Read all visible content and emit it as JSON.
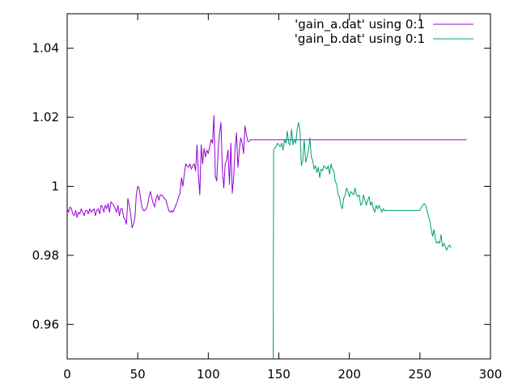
{
  "chart_data": {
    "type": "line",
    "title": "",
    "xlabel": "",
    "ylabel": "",
    "xlim": [
      0,
      300
    ],
    "ylim": [
      0.95,
      1.05
    ],
    "xticks": [
      {
        "value": 0,
        "label": "0"
      },
      {
        "value": 50,
        "label": "50"
      },
      {
        "value": 100,
        "label": "100"
      },
      {
        "value": 150,
        "label": "150"
      },
      {
        "value": 200,
        "label": "200"
      },
      {
        "value": 250,
        "label": "250"
      },
      {
        "value": 300,
        "label": "300"
      }
    ],
    "yticks": [
      {
        "value": 0.96,
        "label": "0.96"
      },
      {
        "value": 0.98,
        "label": "0.98"
      },
      {
        "value": 1.0,
        "label": "1"
      },
      {
        "value": 1.02,
        "label": "1.02"
      },
      {
        "value": 1.04,
        "label": "1.04"
      }
    ],
    "grid": false,
    "legend_position": "top-right",
    "series": [
      {
        "name": "'gain_a.dat' using 0:1",
        "color": "#9400d3",
        "points": [
          [
            0,
            0.9935
          ],
          [
            1,
            0.9925
          ],
          [
            2,
            0.994
          ],
          [
            3,
            0.9935
          ],
          [
            4,
            0.992
          ],
          [
            5,
            0.9915
          ],
          [
            6,
            0.993
          ],
          [
            7,
            0.991
          ],
          [
            8,
            0.9925
          ],
          [
            9,
            0.992
          ],
          [
            10,
            0.9935
          ],
          [
            11,
            0.9925
          ],
          [
            12,
            0.9915
          ],
          [
            13,
            0.993
          ],
          [
            14,
            0.993
          ],
          [
            15,
            0.992
          ],
          [
            16,
            0.9935
          ],
          [
            17,
            0.9925
          ],
          [
            18,
            0.993
          ],
          [
            19,
            0.9935
          ],
          [
            20,
            0.9915
          ],
          [
            21,
            0.993
          ],
          [
            22,
            0.9935
          ],
          [
            23,
            0.992
          ],
          [
            24,
            0.9945
          ],
          [
            25,
            0.994
          ],
          [
            26,
            0.9925
          ],
          [
            27,
            0.9945
          ],
          [
            28,
            0.9935
          ],
          [
            29,
            0.995
          ],
          [
            30,
            0.9925
          ],
          [
            31,
            0.9955
          ],
          [
            32,
            0.995
          ],
          [
            33,
            0.9945
          ],
          [
            34,
            0.9935
          ],
          [
            35,
            0.9925
          ],
          [
            36,
            0.9945
          ],
          [
            37,
            0.9915
          ],
          [
            38,
            0.9935
          ],
          [
            39,
            0.9935
          ],
          [
            40,
            0.991
          ],
          [
            41,
            0.9905
          ],
          [
            42,
            0.989
          ],
          [
            43,
            0.9965
          ],
          [
            44,
            0.9945
          ],
          [
            45,
            0.992
          ],
          [
            46,
            0.988
          ],
          [
            47,
            0.989
          ],
          [
            48,
            0.991
          ],
          [
            49,
            0.9975
          ],
          [
            50,
            1.0
          ],
          [
            51,
            0.9995
          ],
          [
            52,
            0.9965
          ],
          [
            53,
            0.994
          ],
          [
            54,
            0.993
          ],
          [
            55,
            0.993
          ],
          [
            56,
            0.9935
          ],
          [
            57,
            0.9945
          ],
          [
            58,
            0.997
          ],
          [
            59,
            0.9985
          ],
          [
            60,
            0.9965
          ],
          [
            61,
            0.995
          ],
          [
            62,
            0.994
          ],
          [
            63,
            0.9965
          ],
          [
            64,
            0.9975
          ],
          [
            65,
            0.996
          ],
          [
            66,
            0.9975
          ],
          [
            67,
            0.9975
          ],
          [
            68,
            0.997
          ],
          [
            69,
            0.9965
          ],
          [
            70,
            0.996
          ],
          [
            71,
            0.9945
          ],
          [
            72,
            0.993
          ],
          [
            73,
            0.9925
          ],
          [
            74,
            0.993
          ],
          [
            75,
            0.9925
          ],
          [
            76,
            0.9935
          ],
          [
            77,
            0.9945
          ],
          [
            78,
            0.9955
          ],
          [
            79,
            0.997
          ],
          [
            80,
            0.998
          ],
          [
            81,
            1.0025
          ],
          [
            82,
            1.0
          ],
          [
            83,
            1.0035
          ],
          [
            84,
            1.0065
          ],
          [
            85,
            1.006
          ],
          [
            86,
            1.0055
          ],
          [
            87,
            1.0065
          ],
          [
            88,
            1.005
          ],
          [
            89,
            1.006
          ],
          [
            90,
            1.0065
          ],
          [
            91,
            1.0045
          ],
          [
            92,
            1.012
          ],
          [
            93,
            1.0035
          ],
          [
            94,
            0.9975
          ],
          [
            95,
            1.012
          ],
          [
            96,
            1.0065
          ],
          [
            97,
            1.011
          ],
          [
            98,
            1.0085
          ],
          [
            99,
            1.0105
          ],
          [
            100,
            1.0095
          ],
          [
            101,
            1.0115
          ],
          [
            102,
            1.0135
          ],
          [
            103,
            1.0125
          ],
          [
            104,
            1.0205
          ],
          [
            105,
            1.003
          ],
          [
            106,
            1.0015
          ],
          [
            107,
            1.0105
          ],
          [
            108,
            1.0155
          ],
          [
            109,
            1.0185
          ],
          [
            110,
            1.0045
          ],
          [
            111,
            0.9995
          ],
          [
            112,
            1.0065
          ],
          [
            113,
            1.0075
          ],
          [
            114,
            1.0105
          ],
          [
            115,
            1.0005
          ],
          [
            116,
            1.0125
          ],
          [
            117,
            0.998
          ],
          [
            118,
            1.0025
          ],
          [
            119,
            1.011
          ],
          [
            120,
            1.0155
          ],
          [
            121,
            1.0055
          ],
          [
            122,
            1.0105
          ],
          [
            123,
            1.014
          ],
          [
            124,
            1.0125
          ],
          [
            125,
            1.0095
          ],
          [
            126,
            1.0175
          ],
          [
            127,
            1.015
          ],
          [
            128,
            1.013
          ],
          [
            129,
            1.013
          ],
          [
            130,
            1.0135
          ],
          [
            131,
            1.0135
          ],
          [
            140,
            1.0135
          ],
          [
            200,
            1.0135
          ],
          [
            283,
            1.0135
          ]
        ]
      },
      {
        "name": "'gain_b.dat' using 0:1",
        "color": "#009e73",
        "points": [
          [
            146,
            0.95
          ],
          [
            146.3,
            1.0105
          ],
          [
            147,
            1.011
          ],
          [
            148,
            1.0115
          ],
          [
            149,
            1.0125
          ],
          [
            150,
            1.012
          ],
          [
            151,
            1.0115
          ],
          [
            152,
            1.0125
          ],
          [
            153,
            1.0105
          ],
          [
            154,
            1.0135
          ],
          [
            155,
            1.0125
          ],
          [
            156,
            1.016
          ],
          [
            157,
            1.0125
          ],
          [
            158,
            1.012
          ],
          [
            159,
            1.0165
          ],
          [
            160,
            1.012
          ],
          [
            161,
            1.0135
          ],
          [
            162,
            1.0125
          ],
          [
            163,
            1.0165
          ],
          [
            164,
            1.0185
          ],
          [
            165,
            1.016
          ],
          [
            166,
            1.006
          ],
          [
            167,
            1.0075
          ],
          [
            168,
            1.0135
          ],
          [
            169,
            1.007
          ],
          [
            170,
            1.0085
          ],
          [
            171,
            1.0105
          ],
          [
            172,
            1.014
          ],
          [
            173,
            1.0085
          ],
          [
            174,
            1.0075
          ],
          [
            175,
            1.005
          ],
          [
            176,
            1.006
          ],
          [
            177,
            1.004
          ],
          [
            178,
            1.0055
          ],
          [
            179,
            1.0025
          ],
          [
            180,
            1.005
          ],
          [
            181,
            1.0045
          ],
          [
            182,
            1.006
          ],
          [
            183,
            1.0055
          ],
          [
            184,
            1.005
          ],
          [
            185,
            1.006
          ],
          [
            186,
            1.0035
          ],
          [
            187,
            1.0065
          ],
          [
            188,
            1.005
          ],
          [
            189,
            1.0045
          ],
          [
            190,
            1.0015
          ],
          [
            191,
            1.0005
          ],
          [
            192,
            0.9975
          ],
          [
            193,
            0.997
          ],
          [
            194,
            0.9945
          ],
          [
            195,
            0.9935
          ],
          [
            196,
            0.9965
          ],
          [
            197,
            0.9975
          ],
          [
            198,
            0.9995
          ],
          [
            199,
            0.9985
          ],
          [
            200,
            0.997
          ],
          [
            201,
            0.9985
          ],
          [
            202,
            0.998
          ],
          [
            203,
            0.9975
          ],
          [
            204,
            0.9995
          ],
          [
            205,
            0.9975
          ],
          [
            206,
            0.997
          ],
          [
            207,
            0.9975
          ],
          [
            208,
            0.9945
          ],
          [
            209,
            0.995
          ],
          [
            210,
            0.9975
          ],
          [
            211,
            0.996
          ],
          [
            212,
            0.9945
          ],
          [
            213,
            0.996
          ],
          [
            214,
            0.997
          ],
          [
            215,
            0.9945
          ],
          [
            216,
            0.9955
          ],
          [
            217,
            0.9935
          ],
          [
            218,
            0.9925
          ],
          [
            219,
            0.9945
          ],
          [
            220,
            0.9935
          ],
          [
            221,
            0.9945
          ],
          [
            222,
            0.9935
          ],
          [
            223,
            0.9925
          ],
          [
            224,
            0.9935
          ],
          [
            225,
            0.993
          ],
          [
            240,
            0.993
          ],
          [
            250,
            0.993
          ],
          [
            251,
            0.994
          ],
          [
            252,
            0.9945
          ],
          [
            253,
            0.995
          ],
          [
            254,
            0.9945
          ],
          [
            255,
            0.993
          ],
          [
            256,
            0.9915
          ],
          [
            257,
            0.99
          ],
          [
            258,
            0.9875
          ],
          [
            259,
            0.9855
          ],
          [
            260,
            0.9875
          ],
          [
            261,
            0.9845
          ],
          [
            262,
            0.9835
          ],
          [
            263,
            0.984
          ],
          [
            264,
            0.9835
          ],
          [
            265,
            0.986
          ],
          [
            266,
            0.9825
          ],
          [
            267,
            0.9835
          ],
          [
            268,
            0.9825
          ],
          [
            269,
            0.9815
          ],
          [
            270,
            0.9825
          ],
          [
            271,
            0.983
          ],
          [
            272,
            0.9822
          ]
        ]
      }
    ]
  }
}
